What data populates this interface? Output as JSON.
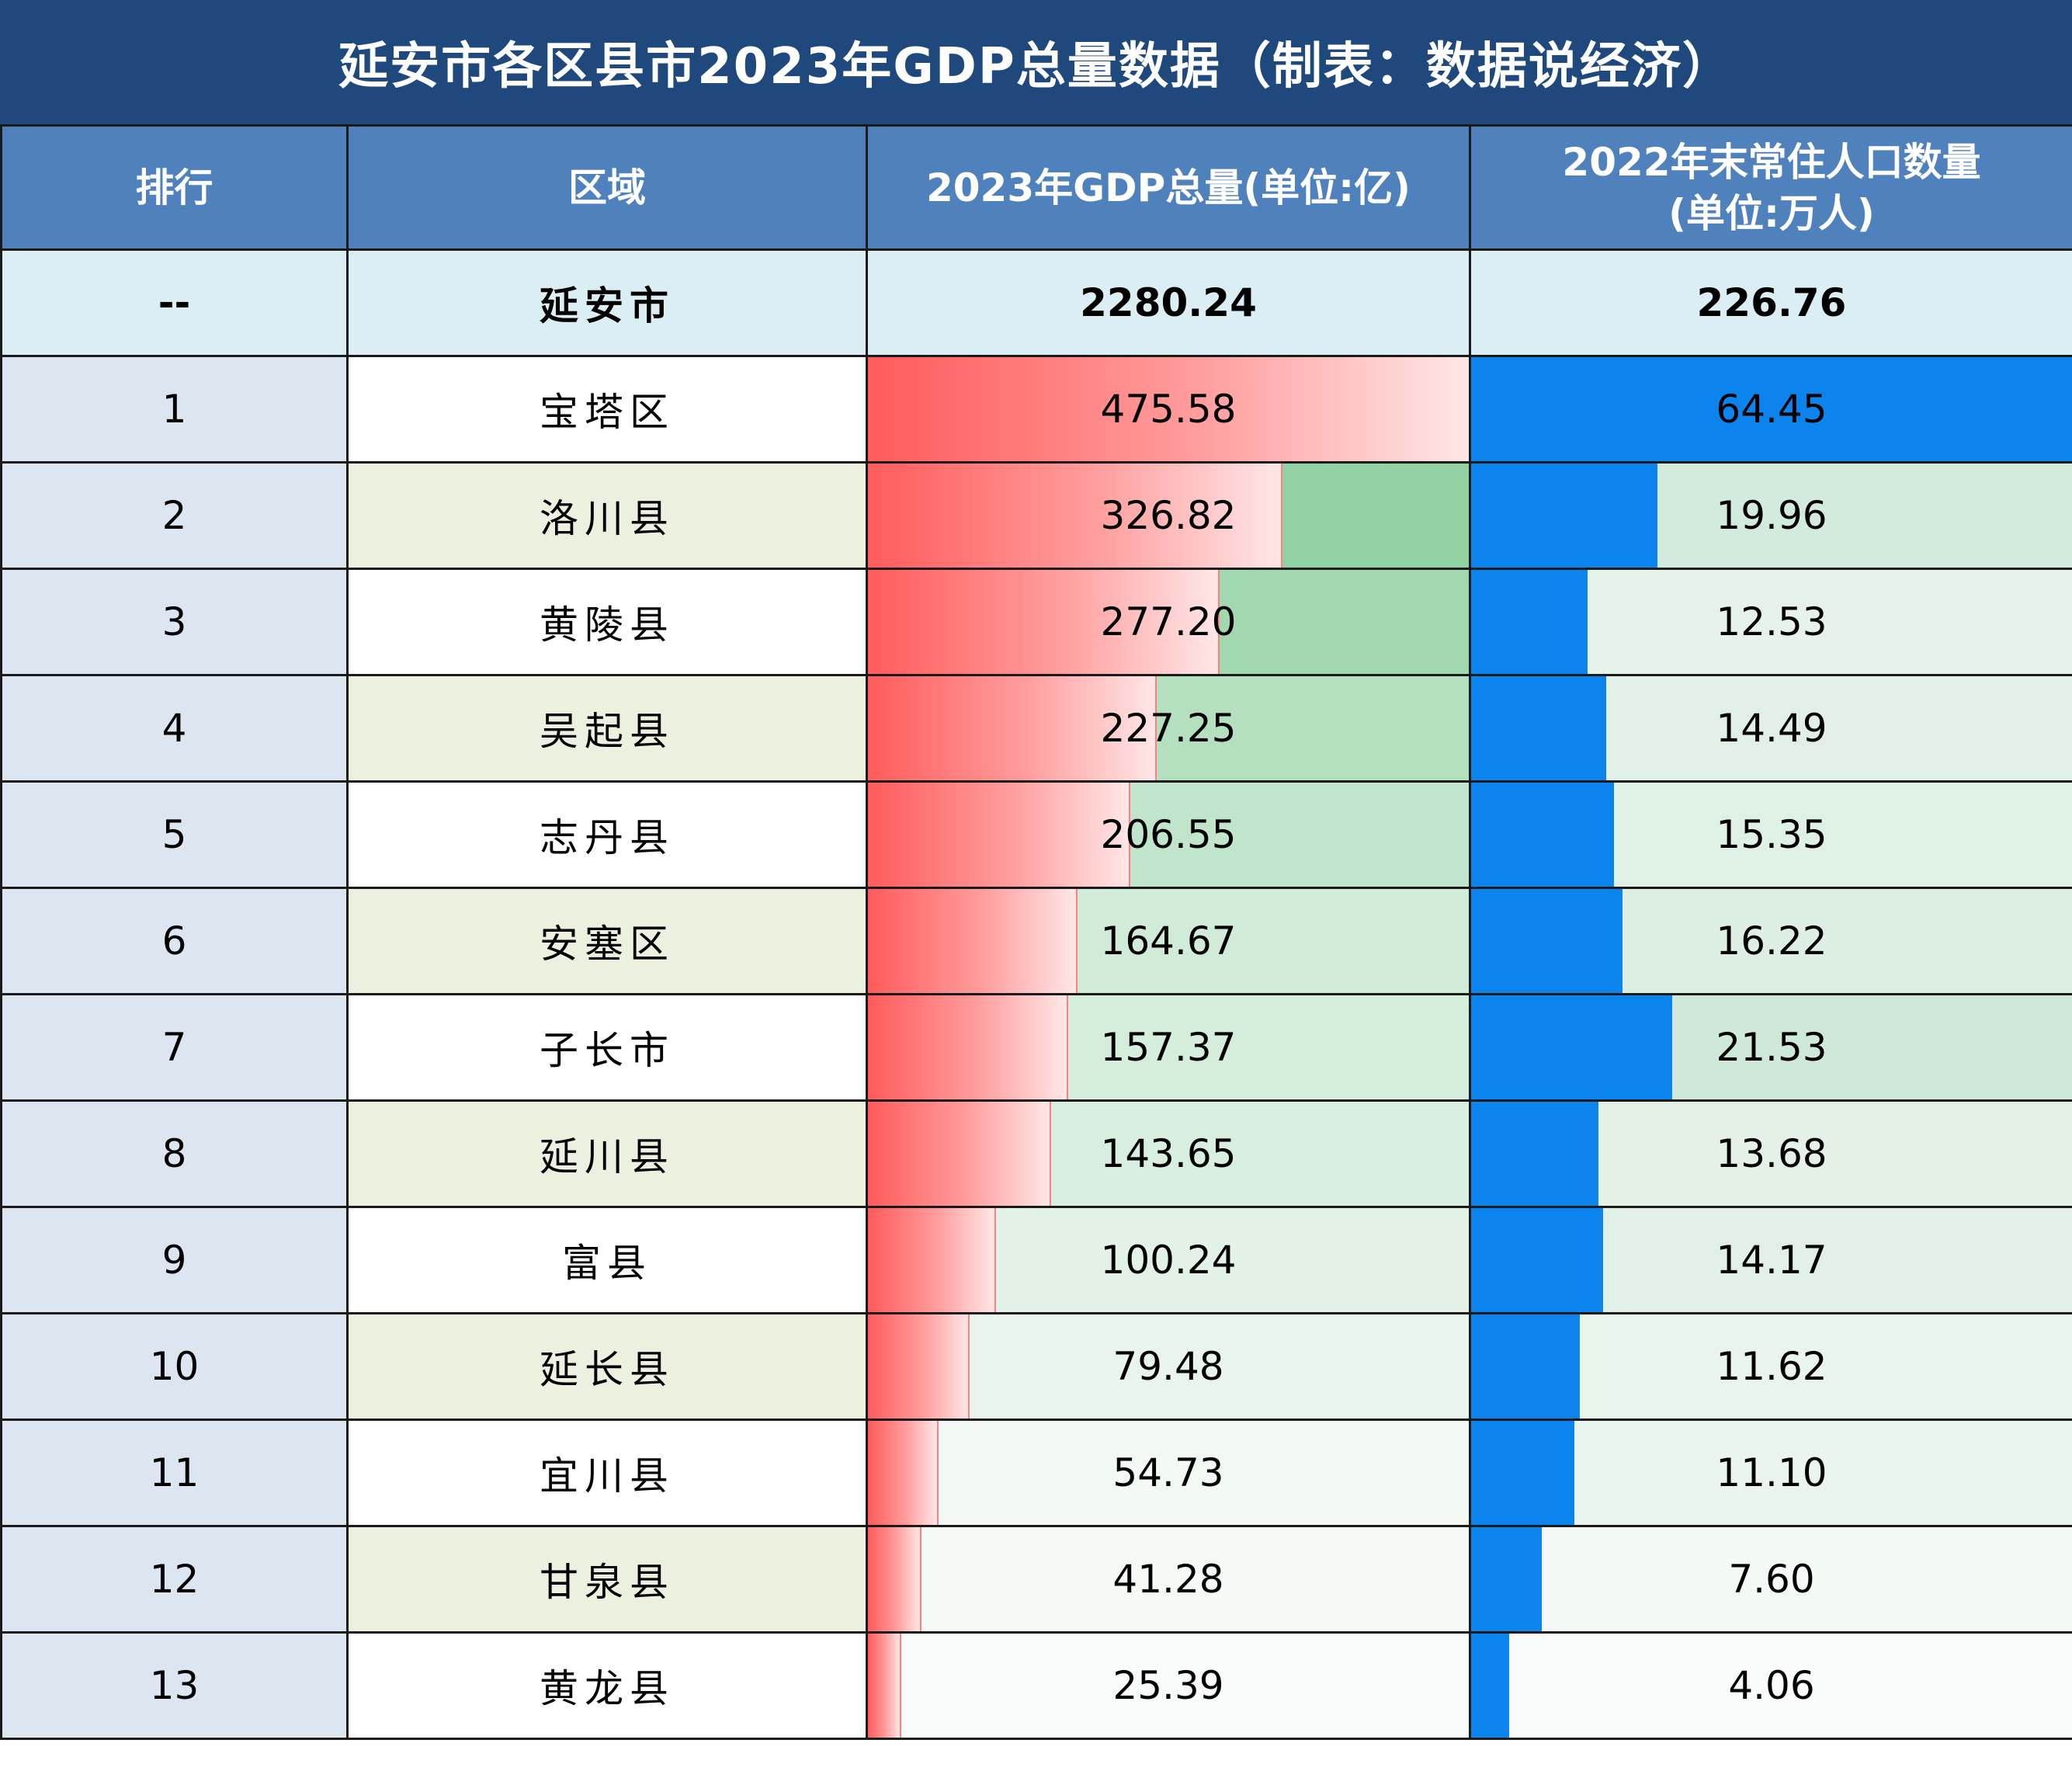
{
  "title": "延安市各区县市2023年GDP总量数据（制表：数据说经济）",
  "headers": {
    "rank": "排行",
    "region": "区域",
    "gdp": "2023年GDP总量(单位:亿)",
    "pop_line1": "2022年末常住人口数量",
    "pop_line2": "(单位:万人)"
  },
  "total": {
    "rank": "--",
    "region": "延安市",
    "gdp": "2280.24",
    "pop": "226.76"
  },
  "rows": [
    {
      "rank": "1",
      "region": "宝塔区",
      "gdp": "475.58",
      "pop": "64.45",
      "gdp_bg": "#ffffff",
      "pop_bg": "#ffffff"
    },
    {
      "rank": "2",
      "region": "洛川县",
      "gdp": "326.82",
      "pop": "19.96",
      "gdp_bg": "#92d1a2",
      "pop_bg": "#d3ebdc"
    },
    {
      "rank": "3",
      "region": "黄陵县",
      "gdp": "277.20",
      "pop": "12.53",
      "gdp_bg": "#a2d8b0",
      "pop_bg": "#e6f3ea"
    },
    {
      "rank": "4",
      "region": "吴起县",
      "gdp": "227.25",
      "pop": "14.49",
      "gdp_bg": "#b4e0c0",
      "pop_bg": "#e1f0e6"
    },
    {
      "rank": "5",
      "region": "志丹县",
      "gdp": "206.55",
      "pop": "15.35",
      "gdp_bg": "#c1e5cb",
      "pop_bg": "#dff0e4"
    },
    {
      "rank": "6",
      "region": "安塞区",
      "gdp": "164.67",
      "pop": "16.22",
      "gdp_bg": "#d0ebd7",
      "pop_bg": "#dcefe2"
    },
    {
      "rank": "7",
      "region": "子长市",
      "gdp": "157.37",
      "pop": "21.53",
      "gdp_bg": "#d5eddb",
      "pop_bg": "#cfe9d8"
    },
    {
      "rank": "8",
      "region": "延川县",
      "gdp": "143.65",
      "pop": "13.68",
      "gdp_bg": "#d8efdf",
      "pop_bg": "#e3f1e7"
    },
    {
      "rank": "9",
      "region": "富县",
      "gdp": "100.24",
      "pop": "14.17",
      "gdp_bg": "#e3f2e7",
      "pop_bg": "#e1f0e6"
    },
    {
      "rank": "10",
      "region": "延长县",
      "gdp": "79.48",
      "pop": "11.62",
      "gdp_bg": "#e8f4ec",
      "pop_bg": "#e8f4ec"
    },
    {
      "rank": "11",
      "region": "宜川县",
      "gdp": "54.73",
      "pop": "11.10",
      "gdp_bg": "#f2f8f4",
      "pop_bg": "#eaf5ee"
    },
    {
      "rank": "12",
      "region": "甘泉县",
      "gdp": "41.28",
      "pop": "7.60",
      "gdp_bg": "#f5faf7",
      "pop_bg": "#f3f9f5"
    },
    {
      "rank": "13",
      "region": "黄龙县",
      "gdp": "25.39",
      "pop": "4.06",
      "gdp_bg": "#f8fbf9",
      "pop_bg": "#f8fbf9"
    }
  ],
  "colors": {
    "title_bg": "#1f497d",
    "header_bg": "#4f81bd",
    "total_bg": "#dbeef4",
    "rank_bg": "#dce6f1",
    "region_tint": "#ebf1de",
    "gdp_bar": "#ff5b5b",
    "pop_bar": "#0b84ee"
  }
}
